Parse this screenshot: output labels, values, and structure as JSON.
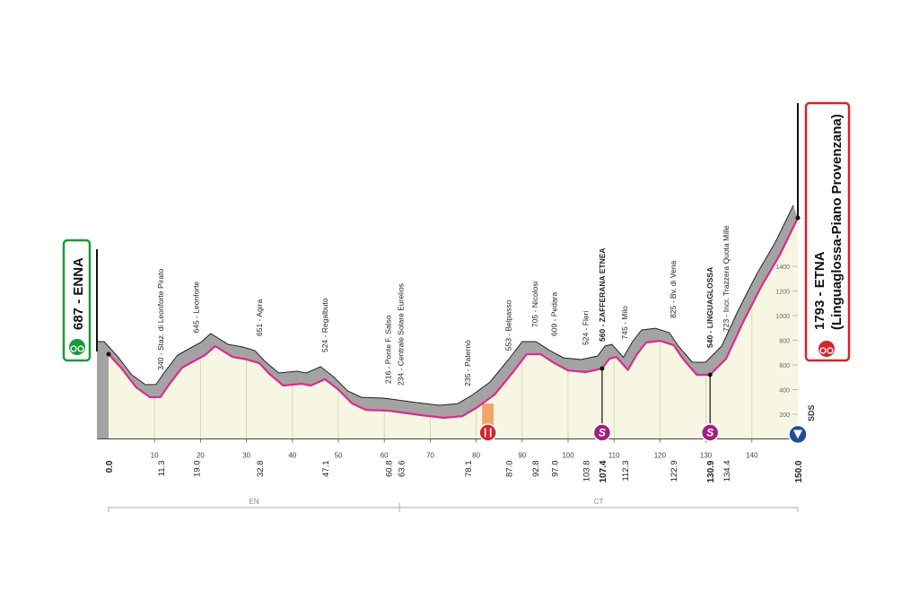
{
  "chart_data": {
    "type": "elevation-profile",
    "start": {
      "label": "687 - ENNA"
    },
    "finish": {
      "label": "1793 - ETNA",
      "sublabel": "(Linguaglossa-Piano Provenzana)"
    },
    "xlim": [
      0,
      150
    ],
    "ylim": [
      0,
      2000
    ],
    "xticks": [
      10,
      20,
      30,
      40,
      50,
      60,
      70,
      80,
      90,
      100,
      110,
      120,
      130,
      140
    ],
    "yticks": [
      200,
      400,
      600,
      800,
      1000,
      1200,
      1400
    ],
    "profile": {
      "x": [
        0,
        3,
        6,
        9,
        11.3,
        13,
        16,
        19,
        21,
        23.2,
        27,
        30,
        32.8,
        35,
        38,
        42,
        44,
        47.1,
        50,
        53,
        56,
        60.8,
        63.6,
        68,
        73,
        77,
        80,
        84,
        88,
        91,
        94,
        97,
        100,
        103.8,
        107.4,
        109,
        110.5,
        113,
        115,
        117,
        120,
        123,
        125,
        128,
        130.9,
        134.4,
        138,
        142,
        146,
        150
      ],
      "y": [
        687,
        564,
        418,
        338,
        340,
        433,
        578,
        640,
        680,
        753,
        665,
        645,
        615,
        527,
        433,
        447,
        433,
        484,
        400,
        287,
        236,
        229,
        215,
        193,
        171,
        185,
        251,
        360,
        542,
        687,
        687,
        615,
        556,
        542,
        571,
        651,
        665,
        560,
        687,
        782,
        796,
        760,
        650,
        520,
        520,
        651,
        942,
        1233,
        1487,
        1793
      ]
    },
    "km_marks": [
      {
        "value": 0,
        "label": "0.0"
      },
      11.3,
      {
        "value": 19,
        "label": "19.0"
      },
      32.8,
      47.1,
      60.8,
      63.6,
      78.1,
      {
        "value": 87,
        "label": "87.0"
      },
      92.8,
      {
        "value": 97,
        "label": "97.0"
      },
      103.8,
      107.4,
      112.3,
      122.9,
      130.9,
      134.4,
      {
        "value": 150,
        "label": "150.0"
      }
    ],
    "waypoints": [
      {
        "km": 11.3,
        "elevation": 340,
        "label": "340 - Staz. di Leonforte Pirato"
      },
      {
        "km": 19,
        "elevation": 645,
        "label": "645 - Leonforte"
      },
      {
        "km": 32.8,
        "elevation": 651,
        "label": "651 - Agira"
      },
      {
        "km": 47.1,
        "elevation": 524,
        "label": "524 - Regalbuto"
      },
      {
        "km": 60.8,
        "elevation": 216,
        "label": "216 - Ponte F. Salso"
      },
      {
        "km": 63.6,
        "elevation": 234,
        "label": "234 - Centrale Solare Eurelios"
      },
      {
        "km": 78.1,
        "elevation": 235,
        "label": "235 - Paternò"
      },
      {
        "km": 87,
        "elevation": 553,
        "label": "553 - Belpasso"
      },
      {
        "km": 92.8,
        "elevation": 705,
        "label": "705 - Nicolosi"
      },
      {
        "km": 97,
        "elevation": 609,
        "label": "609 - Pedara"
      },
      {
        "km": 103.8,
        "elevation": 524,
        "label": "524 - Fleri"
      },
      {
        "km": 107.4,
        "elevation": 560,
        "label": "560 - ZAFFERANA ETNEA",
        "bold": true
      },
      {
        "km": 112.3,
        "elevation": 745,
        "label": "745 - Milo"
      },
      {
        "km": 122.9,
        "elevation": 825,
        "label": "825 - Bv. di Vena"
      },
      {
        "km": 130.9,
        "elevation": 540,
        "label": "540 - LINGUAGLOSSA",
        "bold": true
      },
      {
        "km": 134.4,
        "elevation": 723,
        "label": "723 - Incr. Trazzera Quota Mille"
      }
    ],
    "sprints": [
      {
        "km": 107.4,
        "label": "S"
      },
      {
        "km": 130.9,
        "label": "S"
      }
    ],
    "feed_zone": {
      "start_km": 81.3,
      "end_km": 83.8
    },
    "provinces": [
      {
        "name": "EN"
      },
      {
        "name": "CT"
      }
    ],
    "province_boundary_km": 63.3,
    "climb_category": "SDS"
  }
}
